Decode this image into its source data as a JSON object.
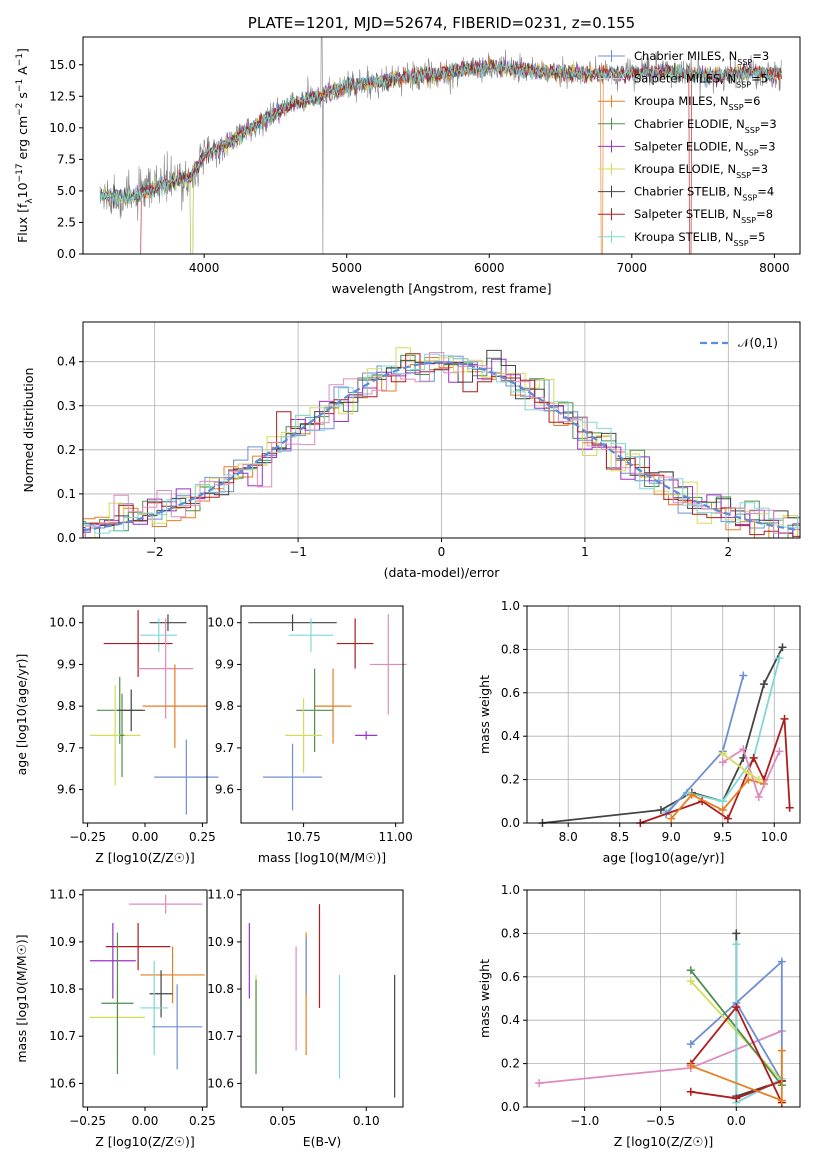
{
  "colors": {
    "chab_miles": "#6e8fd6",
    "salp_miles": "#d4d4d4",
    "krou_miles": "#e67e22",
    "chab_elodie": "#4d8f4d",
    "salp_elodie": "#9b30c8",
    "krou_elodie": "#d6dc5a",
    "chab_stelib": "#444444",
    "salp_stelib": "#b01c1c",
    "krou_stelib": "#7fd8d8",
    "pink": "#e08bc0",
    "gauss": "#5b8dd9"
  },
  "chart_data": [
    {
      "id": "spectrum",
      "type": "line",
      "title": "PLATE=1201, MJD=52674, FIBERID=0231, z=0.155",
      "xlabel": "wavelength [Angstrom, rest frame]",
      "ylabel_parts": [
        "Flux [f",
        "λ",
        "10",
        "−17",
        " erg cm",
        "−2",
        " s",
        "−1",
        " A",
        "−1",
        "]"
      ],
      "xlim": [
        3150,
        8180
      ],
      "ylim": [
        0,
        17.2
      ],
      "xticks": [
        4000,
        5000,
        6000,
        7000,
        8000
      ],
      "yticks": [
        0.0,
        2.5,
        5.0,
        7.5,
        10.0,
        12.5,
        15.0
      ],
      "legend_loc": "right",
      "legend": [
        {
          "label": "Chabrier MILES, N",
          "sub": "SSP",
          "val": "=3",
          "color": "chab_miles"
        },
        {
          "label": "Salpeter MILES, N",
          "sub": "SSP",
          "val": "=5",
          "color": "salp_miles"
        },
        {
          "label": "Kroupa MILES, N",
          "sub": "SSP",
          "val": "=6",
          "color": "krou_miles"
        },
        {
          "label": "Chabrier ELODIE, N",
          "sub": "SSP",
          "val": "=3",
          "color": "chab_elodie"
        },
        {
          "label": "Salpeter ELODIE, N",
          "sub": "SSP",
          "val": "=3",
          "color": "salp_elodie"
        },
        {
          "label": "Kroupa ELODIE, N",
          "sub": "SSP",
          "val": "=3",
          "color": "krou_elodie"
        },
        {
          "label": "Chabrier STELIB, N",
          "sub": "SSP",
          "val": "=4",
          "color": "chab_stelib"
        },
        {
          "label": "Salpeter STELIB, N",
          "sub": "SSP",
          "val": "=8",
          "color": "salp_stelib"
        },
        {
          "label": "Kroupa STELIB, N",
          "sub": "SSP",
          "val": "=5",
          "color": "krou_stelib"
        }
      ],
      "continuum": [
        [
          3270,
          4.6
        ],
        [
          3500,
          4.5
        ],
        [
          3700,
          5.5
        ],
        [
          3900,
          6.0
        ],
        [
          4000,
          7.8
        ],
        [
          4200,
          9.0
        ],
        [
          4400,
          10.5
        ],
        [
          4600,
          11.8
        ],
        [
          4800,
          12.5
        ],
        [
          5000,
          13.3
        ],
        [
          5200,
          13.6
        ],
        [
          5400,
          14.0
        ],
        [
          5600,
          14.2
        ],
        [
          5800,
          14.6
        ],
        [
          6000,
          14.8
        ],
        [
          6200,
          14.7
        ],
        [
          6400,
          14.4
        ],
        [
          6600,
          14.3
        ],
        [
          6800,
          14.2
        ],
        [
          7000,
          14.3
        ],
        [
          7200,
          14.5
        ],
        [
          7400,
          14.3
        ],
        [
          7600,
          14.1
        ],
        [
          7800,
          14.4
        ],
        [
          8050,
          14.3
        ]
      ]
    },
    {
      "id": "residuals",
      "type": "line",
      "xlabel": "(data-model)/error",
      "ylabel": "Normed distribution",
      "xlim": [
        -2.5,
        2.5
      ],
      "ylim": [
        0,
        0.49
      ],
      "xticks": [
        -2,
        -1,
        0,
        1,
        2
      ],
      "yticks": [
        0.0,
        0.1,
        0.2,
        0.3,
        0.4
      ],
      "grid": true,
      "legend_loc": "upper right",
      "legend_label": "𝒩(0,1)",
      "bin_width": 0.1
    },
    {
      "id": "age_vs_Z",
      "type": "scatter",
      "xlabel": "Z [log10(Z/Z☉)]",
      "ylabel": "age  [log10(age/yr)]",
      "xlim": [
        -0.27,
        0.27
      ],
      "ylim": [
        9.52,
        10.04
      ],
      "xticks": [
        -0.25,
        0.0,
        0.25
      ],
      "yticks": [
        9.6,
        9.7,
        9.8,
        9.9,
        10.0
      ],
      "points": [
        {
          "x": 0.1,
          "y": 10.0,
          "ex": 0.08,
          "ey": 0.02,
          "color": "chab_stelib"
        },
        {
          "x": 0.06,
          "y": 9.97,
          "ex": 0.08,
          "ey": 0.04,
          "color": "krou_stelib"
        },
        {
          "x": -0.03,
          "y": 9.95,
          "ex": 0.15,
          "ey": 0.08,
          "color": "salp_stelib"
        },
        {
          "x": 0.09,
          "y": 9.89,
          "ex": 0.12,
          "ey": 0.12,
          "color": "pink"
        },
        {
          "x": 0.13,
          "y": 9.8,
          "ex": 0.14,
          "ey": 0.1,
          "color": "krou_miles"
        },
        {
          "x": 0.18,
          "y": 9.63,
          "ex": 0.14,
          "ey": 0.09,
          "color": "chab_miles"
        },
        {
          "x": -0.11,
          "y": 9.79,
          "ex": 0.1,
          "ey": 0.08,
          "color": "chab_elodie"
        },
        {
          "x": -0.13,
          "y": 9.73,
          "ex": 0.11,
          "ey": 0.12,
          "color": "krou_elodie"
        },
        {
          "x": -0.1,
          "y": 9.73,
          "ex": 0.01,
          "ey": 0.1,
          "color": "chab_elodie"
        },
        {
          "x": -0.06,
          "y": 9.79,
          "ex": 0.06,
          "ey": 0.05,
          "color": "chab_stelib"
        }
      ]
    },
    {
      "id": "age_vs_mass",
      "type": "scatter",
      "xlabel": "mass [log10(M/M☉)]",
      "xlim": [
        10.58,
        11.02
      ],
      "ylim": [
        9.52,
        10.04
      ],
      "xticks": [
        10.75,
        11.0
      ],
      "yticks": [
        9.6,
        9.7,
        9.8,
        9.9,
        10.0
      ],
      "points": [
        {
          "x": 10.72,
          "y": 10.0,
          "ex": 0.12,
          "ey": 0.02,
          "color": "chab_stelib"
        },
        {
          "x": 10.77,
          "y": 9.97,
          "ex": 0.06,
          "ey": 0.04,
          "color": "krou_stelib"
        },
        {
          "x": 10.89,
          "y": 9.95,
          "ex": 0.05,
          "ey": 0.06,
          "color": "salp_stelib"
        },
        {
          "x": 10.98,
          "y": 9.9,
          "ex": 0.05,
          "ey": 0.12,
          "color": "pink"
        },
        {
          "x": 10.83,
          "y": 9.8,
          "ex": 0.05,
          "ey": 0.09,
          "color": "krou_miles"
        },
        {
          "x": 10.78,
          "y": 9.79,
          "ex": 0.05,
          "ey": 0.1,
          "color": "chab_elodie"
        },
        {
          "x": 10.75,
          "y": 9.73,
          "ex": 0.05,
          "ey": 0.09,
          "color": "krou_elodie"
        },
        {
          "x": 10.72,
          "y": 9.63,
          "ex": 0.08,
          "ey": 0.08,
          "color": "chab_miles"
        },
        {
          "x": 10.92,
          "y": 9.73,
          "ex": 0.03,
          "ey": 0.01,
          "color": "salp_elodie"
        }
      ]
    },
    {
      "id": "weight_vs_age",
      "type": "line",
      "xlabel": "age  [log10(age/yr)]",
      "ylabel": "mass weight",
      "xlim": [
        7.6,
        10.25
      ],
      "ylim": [
        0,
        1.0
      ],
      "xticks": [
        8.0,
        8.5,
        9.0,
        9.5,
        10.0
      ],
      "yticks": [
        0.0,
        0.2,
        0.4,
        0.6,
        0.8,
        1.0
      ],
      "grid": true,
      "series": [
        {
          "color": "chab_stelib",
          "x": [
            7.75,
            8.9,
            9.2,
            9.5,
            9.7,
            9.9,
            10.08
          ],
          "y": [
            0.0,
            0.06,
            0.14,
            0.1,
            0.3,
            0.64,
            0.81
          ]
        },
        {
          "color": "krou_stelib",
          "x": [
            8.95,
            9.15,
            9.5,
            9.8,
            10.05
          ],
          "y": [
            0.05,
            0.14,
            0.1,
            0.3,
            0.76
          ]
        },
        {
          "color": "chab_miles",
          "x": [
            8.95,
            9.5,
            9.7
          ],
          "y": [
            0.04,
            0.33,
            0.68
          ]
        },
        {
          "color": "salp_stelib",
          "x": [
            8.7,
            9.3,
            9.55,
            9.8,
            9.9,
            10.1,
            10.15
          ],
          "y": [
            0.0,
            0.1,
            0.02,
            0.3,
            0.2,
            0.48,
            0.07
          ]
        },
        {
          "color": "krou_miles",
          "x": [
            9.0,
            9.2,
            9.5,
            9.75,
            9.9
          ],
          "y": [
            0.02,
            0.13,
            0.06,
            0.2,
            0.18
          ]
        },
        {
          "color": "pink",
          "x": [
            9.5,
            9.7,
            9.85,
            10.05
          ],
          "y": [
            0.28,
            0.34,
            0.12,
            0.33
          ]
        },
        {
          "color": "krou_elodie",
          "x": [
            9.5,
            9.75,
            9.85
          ],
          "y": [
            0.32,
            0.23,
            0.2
          ]
        }
      ]
    },
    {
      "id": "mass_vs_Z",
      "type": "scatter",
      "xlabel": "Z [log10(Z/Z☉)]",
      "ylabel": "mass [log10(M/M☉)]",
      "xlim": [
        -0.27,
        0.27
      ],
      "ylim": [
        10.55,
        11.01
      ],
      "xticks": [
        -0.25,
        0.0,
        0.25
      ],
      "yticks": [
        10.6,
        10.7,
        10.8,
        10.9,
        11.0
      ],
      "points": [
        {
          "x": 0.09,
          "y": 10.98,
          "ex": 0.16,
          "ey": 0.02,
          "color": "pink"
        },
        {
          "x": -0.03,
          "y": 10.89,
          "ex": 0.14,
          "ey": 0.05,
          "color": "salp_stelib"
        },
        {
          "x": -0.14,
          "y": 10.86,
          "ex": 0.1,
          "ey": 0.08,
          "color": "salp_elodie"
        },
        {
          "x": 0.12,
          "y": 10.83,
          "ex": 0.14,
          "ey": 0.06,
          "color": "krou_miles"
        },
        {
          "x": -0.12,
          "y": 10.74,
          "ex": 0.12,
          "ey": 0.08,
          "color": "krou_elodie"
        },
        {
          "x": -0.12,
          "y": 10.77,
          "ex": 0.07,
          "ey": 0.15,
          "color": "chab_elodie"
        },
        {
          "x": 0.07,
          "y": 10.79,
          "ex": 0.05,
          "ey": 0.05,
          "color": "chab_stelib"
        },
        {
          "x": 0.04,
          "y": 10.76,
          "ex": 0.06,
          "ey": 0.1,
          "color": "krou_stelib"
        },
        {
          "x": 0.14,
          "y": 10.72,
          "ex": 0.11,
          "ey": 0.09,
          "color": "chab_miles"
        }
      ]
    },
    {
      "id": "mass_vs_ebv",
      "type": "scatter",
      "xlabel": "E(B-V)",
      "xlim": [
        0.025,
        0.122
      ],
      "ylim": [
        10.55,
        11.01
      ],
      "xticks": [
        0.05,
        0.1
      ],
      "yticks": [
        10.6,
        10.7,
        10.8,
        10.9,
        11.0
      ],
      "points": [
        {
          "x": 0.03,
          "y": 10.86,
          "ey": 0.08,
          "color": "salp_elodie"
        },
        {
          "x": 0.034,
          "y": 10.74,
          "ey": 0.09,
          "color": "krou_elodie"
        },
        {
          "x": 0.034,
          "y": 10.72,
          "ey": 0.1,
          "color": "chab_elodie"
        },
        {
          "x": 0.058,
          "y": 10.78,
          "ey": 0.11,
          "color": "pink"
        },
        {
          "x": 0.064,
          "y": 10.79,
          "ey": 0.13,
          "color": "krou_miles"
        },
        {
          "x": 0.064,
          "y": 10.85,
          "ey": 0.06,
          "color": "chab_miles"
        },
        {
          "x": 0.072,
          "y": 10.87,
          "ey": 0.11,
          "color": "salp_stelib"
        },
        {
          "x": 0.084,
          "y": 10.72,
          "ey": 0.11,
          "color": "krou_stelib"
        },
        {
          "x": 0.117,
          "y": 10.7,
          "ey": 0.13,
          "color": "chab_stelib"
        }
      ]
    },
    {
      "id": "weight_vs_Z",
      "type": "line",
      "xlabel": "Z [log10(Z/Z☉)]",
      "ylabel": "mass weight",
      "xlim": [
        -1.38,
        0.42
      ],
      "ylim": [
        0,
        1.0
      ],
      "xticks": [
        -1.0,
        -0.5,
        0.0
      ],
      "yticks": [
        0.0,
        0.2,
        0.4,
        0.6,
        0.8,
        1.0
      ],
      "grid": true,
      "series": [
        {
          "color": "pink",
          "x": [
            -1.3,
            -0.3,
            0.3
          ],
          "y": [
            0.11,
            0.18,
            0.35
          ]
        },
        {
          "color": "chab_miles",
          "x": [
            -0.3,
            0.3,
            0.3,
            0.0
          ],
          "y": [
            0.29,
            0.67,
            0.12,
            0.48
          ]
        },
        {
          "color": "krou_elodie",
          "x": [
            -0.3,
            0.3
          ],
          "y": [
            0.58,
            0.12
          ]
        },
        {
          "color": "chab_elodie",
          "x": [
            -0.3,
            0.3
          ],
          "y": [
            0.63,
            0.1
          ]
        },
        {
          "color": "chab_stelib",
          "x": [
            0.0,
            0.0,
            0.3
          ],
          "y": [
            0.8,
            0.05,
            0.12
          ]
        },
        {
          "color": "krou_stelib",
          "x": [
            0.0,
            0.0,
            0.3
          ],
          "y": [
            0.75,
            0.02,
            0.13
          ]
        },
        {
          "color": "salp_stelib",
          "x": [
            -0.3,
            0.0,
            0.3
          ],
          "y": [
            0.07,
            0.04,
            0.12
          ]
        },
        {
          "color": "salp_stelib",
          "x": [
            -0.3,
            0.0,
            0.3
          ],
          "y": [
            0.2,
            0.46,
            0.02
          ]
        },
        {
          "color": "krou_miles",
          "x": [
            -0.3,
            0.3,
            0.3
          ],
          "y": [
            0.19,
            0.03,
            0.26
          ]
        }
      ]
    }
  ]
}
